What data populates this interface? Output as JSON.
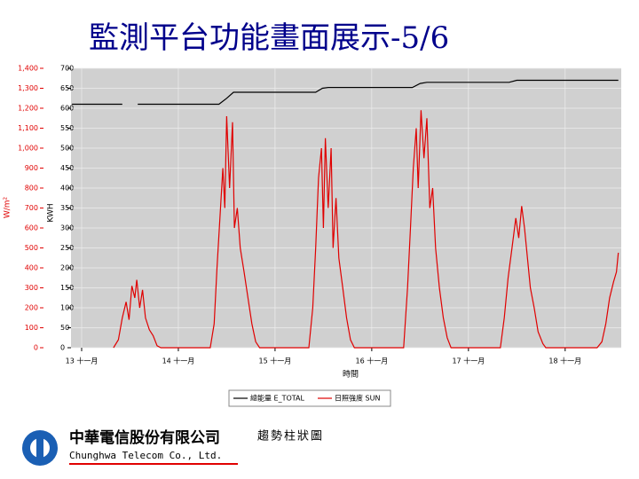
{
  "slide": {
    "title": "監測平台功能畫面展示-5/6",
    "caption": "趨勢柱狀圖",
    "company_cn": "中華電信股份有限公司",
    "company_en": "Chunghwa Telecom Co., Ltd."
  },
  "chart_data": {
    "type": "line",
    "x_label": "時間",
    "y_label": "W/m²",
    "y2_label": "KWH",
    "xlim": [
      12.89,
      18.58
    ],
    "xticks": [
      {
        "value": 13,
        "label": "13 十一月"
      },
      {
        "value": 14,
        "label": "14 十一月"
      },
      {
        "value": 15,
        "label": "15 十一月"
      },
      {
        "value": 16,
        "label": "16 十一月"
      },
      {
        "value": 17,
        "label": "17 十一月"
      },
      {
        "value": 18,
        "label": "18 十一月"
      }
    ],
    "ylim": [
      0,
      1400
    ],
    "yticks": [
      0,
      100,
      200,
      300,
      400,
      500,
      600,
      700,
      800,
      900,
      {
        "value": 1000,
        "label": "1,000"
      },
      {
        "value": 1100,
        "label": "1,100"
      },
      {
        "value": 1200,
        "label": "1,200"
      },
      {
        "value": 1300,
        "label": "1,300"
      },
      {
        "value": 1400,
        "label": "1,400"
      }
    ],
    "y2lim": [
      0,
      700
    ],
    "y2ticks": [
      0,
      50,
      100,
      150,
      200,
      250,
      300,
      350,
      400,
      450,
      500,
      550,
      600,
      650,
      700
    ],
    "grid": true,
    "series": [
      {
        "name": "總能量 E_TOTAL",
        "color": "#000000",
        "axis": "y2",
        "x": [
          12.9,
          13.42,
          13.5,
          13.58,
          14.42,
          14.5,
          14.57,
          15.42,
          15.49,
          15.55,
          16.42,
          16.5,
          16.57,
          17.42,
          17.5,
          18.55
        ],
        "values": [
          610,
          610,
          null,
          610,
          610,
          625,
          640,
          640,
          650,
          652,
          652,
          662,
          665,
          665,
          670,
          670
        ]
      },
      {
        "name": "日照強度 SUN",
        "color": "#e00000",
        "x": [
          13.33,
          13.38,
          13.42,
          13.46,
          13.49,
          13.52,
          13.55,
          13.57,
          13.6,
          13.63,
          13.66,
          13.7,
          13.74,
          13.78,
          13.82,
          14.33,
          14.37,
          14.4,
          14.43,
          14.46,
          14.48,
          14.5,
          14.53,
          14.56,
          14.58,
          14.61,
          14.64,
          14.68,
          14.72,
          14.76,
          14.8,
          14.84,
          15.35,
          15.39,
          15.42,
          15.45,
          15.48,
          15.5,
          15.52,
          15.55,
          15.58,
          15.6,
          15.63,
          15.66,
          15.7,
          15.74,
          15.78,
          15.82,
          16.33,
          16.37,
          16.4,
          16.43,
          16.46,
          16.48,
          16.51,
          16.54,
          16.57,
          16.6,
          16.63,
          16.66,
          16.7,
          16.74,
          16.78,
          16.82,
          17.33,
          17.37,
          17.41,
          17.45,
          17.49,
          17.52,
          17.55,
          17.58,
          17.61,
          17.64,
          17.68,
          17.72,
          17.77,
          17.8,
          18.33,
          18.38,
          18.42,
          18.46,
          18.5,
          18.53,
          18.55
        ],
        "values": [
          0,
          40,
          150,
          230,
          140,
          310,
          250,
          340,
          200,
          290,
          150,
          90,
          60,
          10,
          0,
          0,
          120,
          400,
          650,
          900,
          700,
          1160,
          800,
          1130,
          600,
          700,
          500,
          380,
          250,
          120,
          30,
          0,
          0,
          200,
          500,
          850,
          1000,
          600,
          1050,
          700,
          1000,
          500,
          750,
          450,
          300,
          150,
          40,
          0,
          0,
          300,
          600,
          900,
          1100,
          800,
          1190,
          950,
          1150,
          700,
          800,
          500,
          300,
          150,
          50,
          0,
          0,
          150,
          350,
          500,
          650,
          550,
          710,
          600,
          450,
          300,
          200,
          80,
          20,
          0,
          0,
          30,
          120,
          250,
          330,
          380,
          476
        ]
      }
    ]
  }
}
